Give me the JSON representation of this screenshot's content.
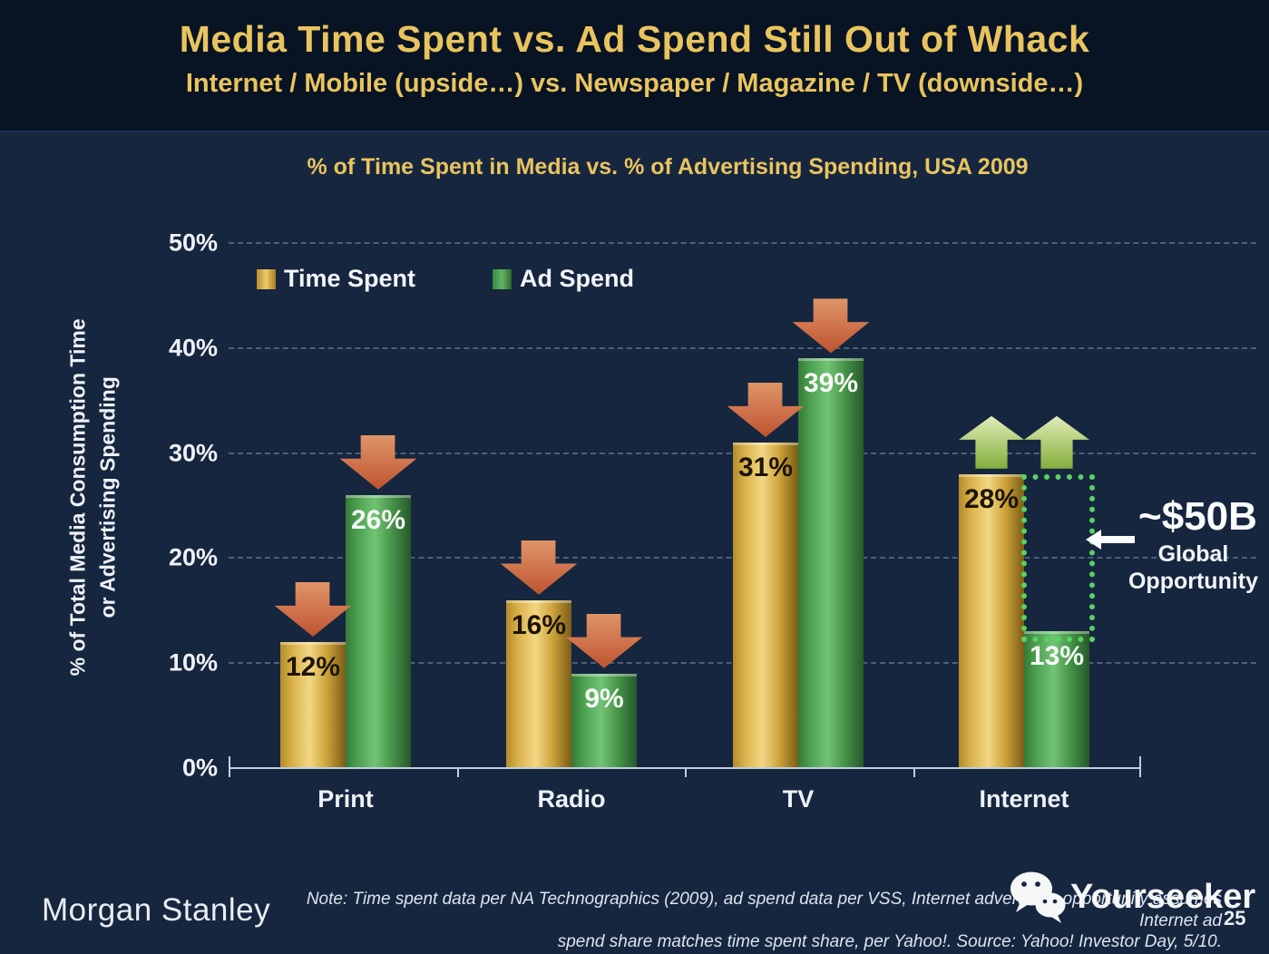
{
  "header": {
    "title": "Media Time Spent vs. Ad Spend Still Out of Whack",
    "subtitle": "Internet / Mobile (upside…) vs. Newspaper / Magazine / TV (downside…)"
  },
  "chart": {
    "title": "% of Time Spent in Media vs. % of Advertising Spending, USA 2009",
    "y_axis_title_line1": "% of Total Media Consumption Time",
    "y_axis_title_line2": "or Advertising Spending"
  },
  "chart_data": {
    "type": "bar",
    "title": "% of Time Spent in Media vs. % of Advertising Spending, USA 2009",
    "categories": [
      "Print",
      "Radio",
      "TV",
      "Internet"
    ],
    "series": [
      {
        "name": "Time Spent",
        "color": "#d4a43e",
        "values": [
          12,
          16,
          31,
          28
        ]
      },
      {
        "name": "Ad Spend",
        "color": "#4f9e52",
        "values": [
          26,
          9,
          39,
          13
        ]
      }
    ],
    "value_label_suffix": "%",
    "ylabel": "% of Total Media Consumption Time or Advertising Spending",
    "ylim": [
      0,
      50
    ],
    "yticks_pct": [
      0,
      10,
      20,
      30,
      40,
      50
    ],
    "grid": "dashed-horizontal",
    "legend_position": "top-left",
    "trend_arrows": [
      [
        "down",
        "down"
      ],
      [
        "down",
        "down"
      ],
      [
        "down",
        "down"
      ],
      [
        "up",
        "up"
      ]
    ],
    "opportunity_box": {
      "category": "Internet",
      "from_pct": 13,
      "to_pct": 28,
      "label_headline": "~$50B",
      "label_line1": "Global",
      "label_line2": "Opportunity"
    }
  },
  "footer": {
    "brand": "Morgan Stanley",
    "note_line1": "Note: Time spent data per NA Technographics (2009), ad spend data per VSS, Internet advertising opportunity assumes Internet ad",
    "note_line2": "spend share matches time spent share, per Yahoo!. Source: Yahoo! Investor Day, 5/10.",
    "page_number": "25",
    "watermark": "Yourseeker"
  },
  "colors": {
    "background": "#16263f",
    "header_background": "#081323",
    "accent_gold_text": "#e9c45e",
    "bar_gold": "#d4a43e",
    "bar_green": "#4f9e52",
    "arrow_down": "#c2613a",
    "arrow_up": "#a8c96b",
    "axis": "#c2cedd",
    "opportunity_border": "#58d262"
  }
}
